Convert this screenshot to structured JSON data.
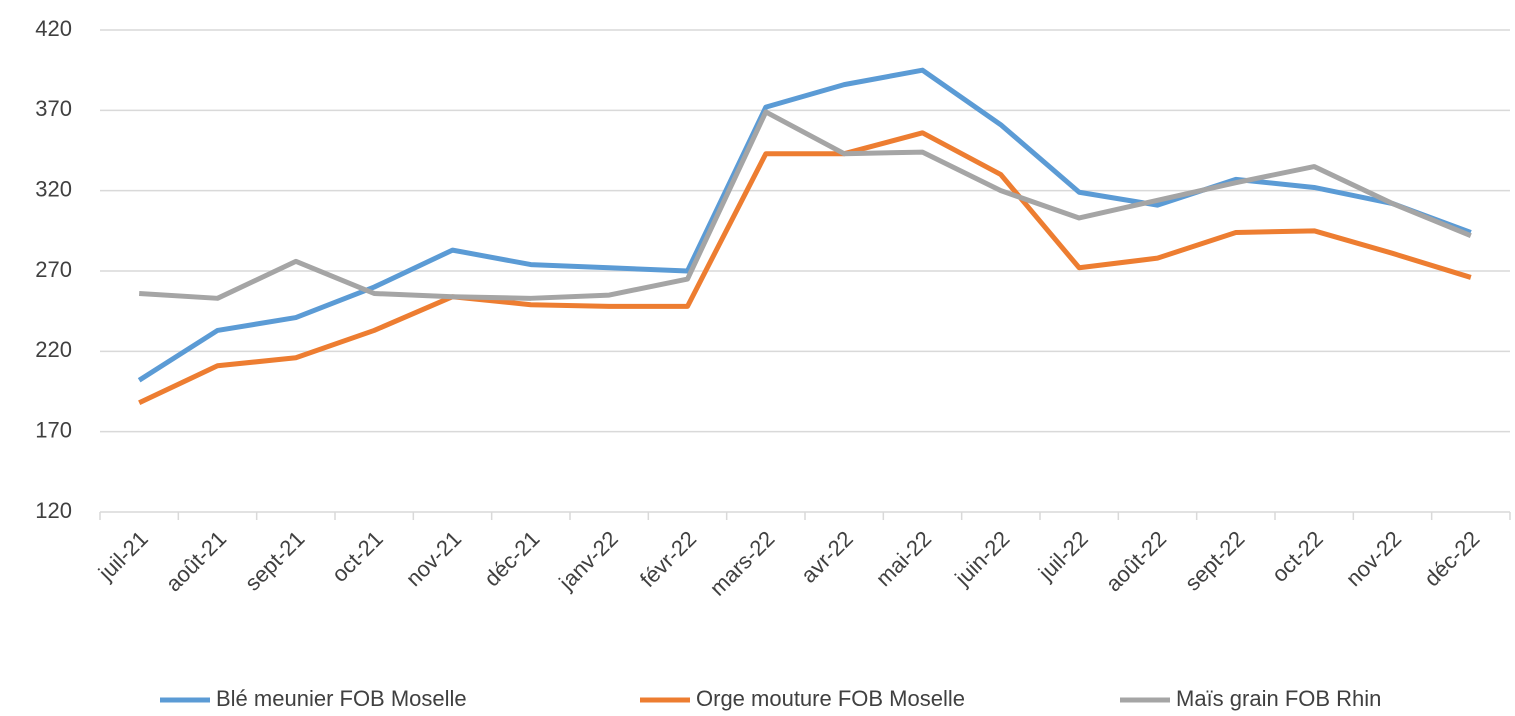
{
  "chart_data": {
    "type": "line",
    "categories": [
      "juil-21",
      "août-21",
      "sept-21",
      "oct-21",
      "nov-21",
      "déc-21",
      "janv-22",
      "févr-22",
      "mars-22",
      "avr-22",
      "mai-22",
      "juin-22",
      "juil-22",
      "août-22",
      "sept-22",
      "oct-22",
      "nov-22",
      "déc-22"
    ],
    "series": [
      {
        "name": "Blé meunier  FOB Moselle",
        "color": "#5b9bd5",
        "values": [
          202,
          233,
          241,
          260,
          283,
          274,
          272,
          270,
          372,
          386,
          395,
          361,
          319,
          311,
          327,
          322,
          312,
          294
        ]
      },
      {
        "name": "Orge mouture FOB Moselle",
        "color": "#ed7d31",
        "values": [
          188,
          211,
          216,
          233,
          254,
          249,
          248,
          248,
          343,
          343,
          356,
          330,
          272,
          278,
          294,
          295,
          281,
          266
        ]
      },
      {
        "name": "Maïs grain FOB Rhin",
        "color": "#a5a5a5",
        "values": [
          256,
          253,
          276,
          256,
          254,
          253,
          255,
          265,
          369,
          343,
          344,
          320,
          303,
          314,
          325,
          335,
          312,
          292
        ]
      }
    ],
    "ylim": [
      120,
      420
    ],
    "yticks": [
      120,
      170,
      220,
      270,
      320,
      370,
      420
    ],
    "grid": true,
    "legend": "bottom"
  }
}
